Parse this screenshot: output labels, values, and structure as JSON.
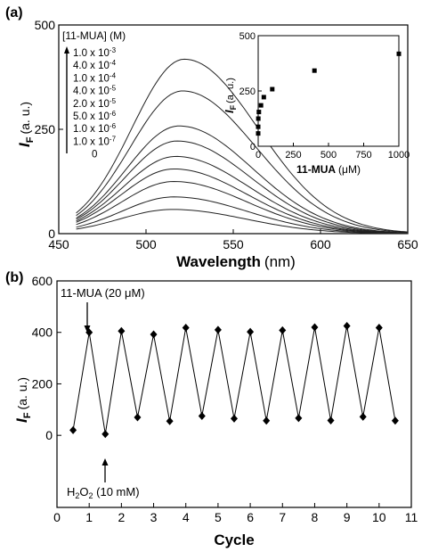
{
  "chart_data": [
    {
      "panel": "(a)",
      "type": "line",
      "xlabel": "Wavelength",
      "xunit": "(nm)",
      "ylabel": "I",
      "ylabel_sub": "F",
      "yunit": "(a. u.)",
      "xlim": [
        450,
        650
      ],
      "ylim": [
        0,
        500
      ],
      "xticks": [
        "450",
        "500",
        "550",
        "600",
        "650"
      ],
      "yticks": [
        "0",
        "250",
        "500"
      ],
      "x_start": 460,
      "legend": {
        "title": "[11-MUA] (M)",
        "entries": [
          "1.0 x 10-3",
          "4.0 x 10-4",
          "1.0 x 10-4",
          "4.0 x 10-5",
          "2.0 x 10-5",
          "5.0 x 10-6",
          "1.0 x 10-6",
          "1.0 x 10-7",
          "0"
        ],
        "entries_mantissa": [
          "1.0 x 10",
          "4.0 x 10",
          "1.0 x 10",
          "4.0 x 10",
          "2.0 x 10",
          "5.0 x 10",
          "1.0 x 10",
          "1.0 x 10",
          "0"
        ],
        "entries_exponent": [
          "-3",
          "-4",
          "-4",
          "-5",
          "-5",
          "-6",
          "-6",
          "-7",
          ""
        ]
      },
      "series": [
        {
          "concentration_M": 0.001,
          "peak": 418,
          "peak_nm": 522
        },
        {
          "concentration_M": 0.0004,
          "peak": 342,
          "peak_nm": 521
        },
        {
          "concentration_M": 0.0001,
          "peak": 258,
          "peak_nm": 519
        },
        {
          "concentration_M": 4e-05,
          "peak": 222,
          "peak_nm": 518
        },
        {
          "concentration_M": 2e-05,
          "peak": 185,
          "peak_nm": 517
        },
        {
          "concentration_M": 5e-06,
          "peak": 155,
          "peak_nm": 516
        },
        {
          "concentration_M": 1e-06,
          "peak": 125,
          "peak_nm": 516
        },
        {
          "concentration_M": 1e-07,
          "peak": 88,
          "peak_nm": 516
        },
        {
          "concentration_M": 0,
          "peak": 58,
          "peak_nm": 515
        }
      ],
      "inset": {
        "type": "scatter",
        "xlabel": "11-MUA",
        "xunit": "(μM)",
        "ylabel": "I",
        "ylabel_sub": "F",
        "yunit": "(a. u.)",
        "xlim": [
          0,
          1000
        ],
        "ylim": [
          0,
          500
        ],
        "xticks": [
          "0",
          "250",
          "500",
          "750",
          "1000"
        ],
        "yticks": [
          "0",
          "250",
          "500"
        ],
        "points": [
          {
            "x": 0,
            "y": 58
          },
          {
            "x": 0.1,
            "y": 88
          },
          {
            "x": 1,
            "y": 125
          },
          {
            "x": 5,
            "y": 155
          },
          {
            "x": 20,
            "y": 185
          },
          {
            "x": 40,
            "y": 222
          },
          {
            "x": 100,
            "y": 258
          },
          {
            "x": 400,
            "y": 342
          },
          {
            "x": 1000,
            "y": 418
          }
        ]
      }
    },
    {
      "panel": "(b)",
      "type": "line",
      "xlabel": "Cycle",
      "ylabel": "I",
      "ylabel_sub": "F",
      "yunit": "(a. u.)",
      "xlim": [
        0,
        11
      ],
      "ylim": [
        -280,
        600
      ],
      "xticks": [
        "0",
        "1",
        "2",
        "3",
        "4",
        "5",
        "6",
        "7",
        "8",
        "9",
        "10",
        "11"
      ],
      "yticks": [
        "0",
        "200",
        "400",
        "600"
      ],
      "x": [
        0.5,
        1,
        1.5,
        2,
        2.5,
        3,
        3.5,
        4,
        4.5,
        5,
        5.5,
        6,
        6.5,
        7,
        7.5,
        8,
        8.5,
        9,
        9.5,
        10,
        10.5
      ],
      "y": [
        20,
        400,
        5,
        405,
        70,
        392,
        55,
        418,
        75,
        410,
        65,
        402,
        57,
        408,
        67,
        420,
        58,
        425,
        72,
        418,
        57
      ],
      "annotations": {
        "top": "11-MUA (20 μM)",
        "bottom_main": "H",
        "bottom_sub": "2",
        "bottom_main2": "O",
        "bottom_sub2": "2",
        "bottom_tail": " (10 mM)"
      }
    }
  ]
}
